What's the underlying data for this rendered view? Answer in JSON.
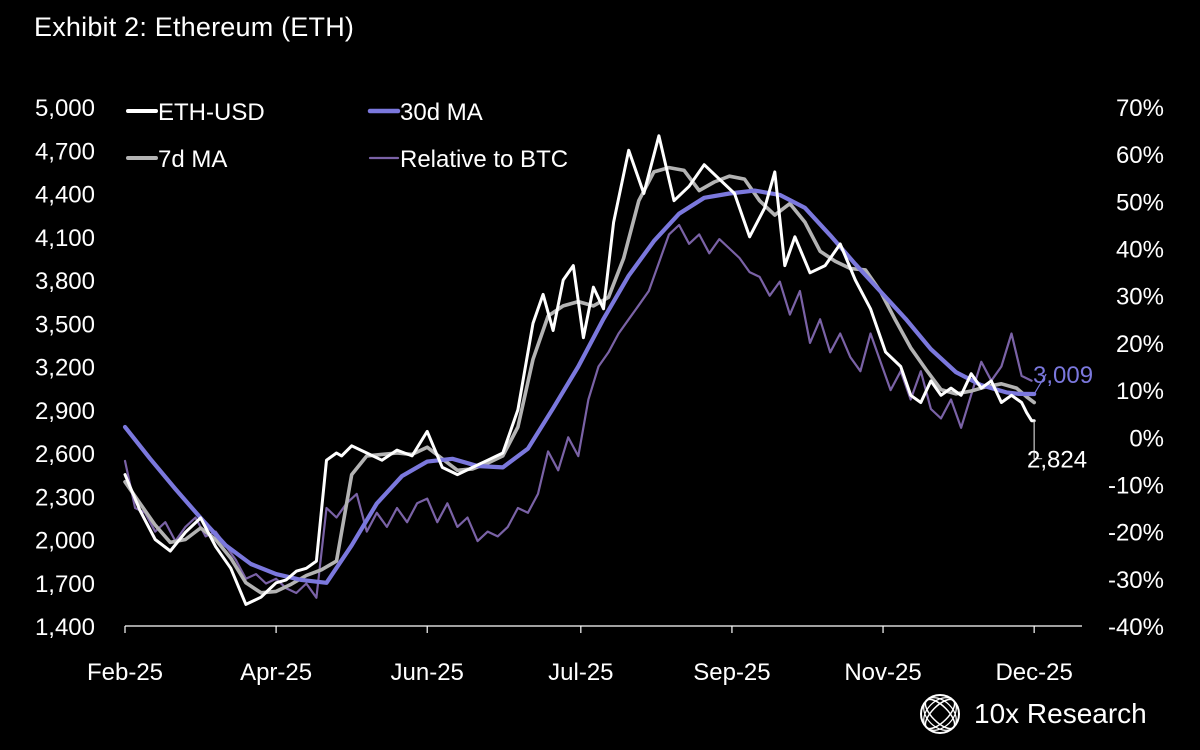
{
  "title": "Exhibit 2: Ethereum (ETH)",
  "brand": {
    "name": "10x Research",
    "icon": "globe-logo-icon"
  },
  "colors": {
    "background": "#000000",
    "eth": "#ffffff",
    "ma7": "#b3b3b3",
    "ma30": "#7b78dd",
    "relative": "#7a62a6",
    "text": "#ffffff"
  },
  "chart_data": {
    "type": "line",
    "x_ticks": [
      "Feb-25",
      "Apr-25",
      "Jun-25",
      "Jul-25",
      "Sep-25",
      "Nov-25",
      "Dec-25"
    ],
    "x_tick_days": [
      0,
      60,
      120,
      181,
      241,
      301,
      361
    ],
    "x_range_days": [
      0,
      380
    ],
    "y_left": {
      "ticks": [
        "5,000",
        "4,700",
        "4,400",
        "4,100",
        "3,800",
        "3,500",
        "3,200",
        "2,900",
        "2,600",
        "2,300",
        "2,000",
        "1,700",
        "1,400"
      ],
      "range": [
        1400,
        5000
      ]
    },
    "y_right": {
      "ticks": [
        "70%",
        "60%",
        "50%",
        "40%",
        "30%",
        "20%",
        "10%",
        "0%",
        "-10%",
        "-20%",
        "-30%",
        "-40%"
      ],
      "range": [
        -40,
        70
      ]
    },
    "legend": [
      "ETH-USD",
      "30d MA",
      "7d MA",
      "Relative to BTC"
    ],
    "series": [
      {
        "name": "ETH-USD",
        "axis": "left",
        "x": [
          0,
          6,
          12,
          18,
          24,
          30,
          36,
          42,
          48,
          54,
          57,
          60,
          64,
          68,
          72,
          76,
          80,
          84,
          86,
          90,
          96,
          102,
          108,
          114,
          120,
          126,
          132,
          138,
          144,
          150,
          156,
          162,
          166,
          170,
          174,
          178,
          182,
          186,
          190,
          194,
          200,
          206,
          212,
          218,
          224,
          230,
          236,
          242,
          248,
          254,
          258,
          262,
          266,
          272,
          278,
          284,
          290,
          296,
          302,
          308,
          312,
          316,
          320,
          324,
          328,
          332,
          336,
          340,
          344,
          348,
          352,
          356,
          358,
          360,
          361
        ],
        "values": [
          2450,
          2200,
          2000,
          1920,
          2050,
          2150,
          1950,
          1800,
          1550,
          1600,
          1650,
          1700,
          1720,
          1780,
          1800,
          1850,
          2550,
          2600,
          2580,
          2650,
          2600,
          2550,
          2620,
          2580,
          2750,
          2500,
          2450,
          2500,
          2550,
          2600,
          2900,
          3500,
          3700,
          3450,
          3800,
          3900,
          3400,
          3750,
          3600,
          4200,
          4700,
          4400,
          4800,
          4350,
          4450,
          4600,
          4500,
          4400,
          4100,
          4300,
          4550,
          3900,
          4100,
          3850,
          3900,
          4050,
          3800,
          3600,
          3300,
          3200,
          3000,
          2950,
          3100,
          3000,
          3050,
          3000,
          3150,
          3050,
          3100,
          2950,
          3000,
          2950,
          2880,
          2824,
          2824
        ]
      },
      {
        "name": "7d MA",
        "axis": "left",
        "x": [
          0,
          6,
          12,
          18,
          24,
          30,
          36,
          42,
          48,
          54,
          60,
          66,
          72,
          78,
          84,
          90,
          96,
          102,
          108,
          114,
          120,
          126,
          132,
          138,
          144,
          150,
          156,
          162,
          168,
          174,
          180,
          186,
          192,
          198,
          204,
          210,
          216,
          222,
          228,
          234,
          240,
          246,
          252,
          258,
          264,
          270,
          276,
          282,
          288,
          294,
          300,
          306,
          312,
          318,
          324,
          330,
          336,
          342,
          348,
          354,
          358,
          361
        ],
        "values": [
          2400,
          2250,
          2100,
          1980,
          2000,
          2080,
          2000,
          1870,
          1700,
          1630,
          1640,
          1690,
          1750,
          1790,
          1850,
          2450,
          2580,
          2590,
          2600,
          2590,
          2640,
          2560,
          2480,
          2490,
          2530,
          2580,
          2780,
          3250,
          3550,
          3620,
          3650,
          3620,
          3680,
          3950,
          4350,
          4550,
          4580,
          4560,
          4420,
          4480,
          4520,
          4500,
          4350,
          4250,
          4330,
          4200,
          4000,
          3930,
          3880,
          3870,
          3720,
          3520,
          3330,
          3180,
          3040,
          3010,
          3030,
          3060,
          3080,
          3050,
          2990,
          2950
        ]
      },
      {
        "name": "30d MA",
        "axis": "left",
        "x": [
          0,
          10,
          20,
          30,
          40,
          50,
          60,
          70,
          80,
          90,
          100,
          110,
          120,
          130,
          140,
          150,
          160,
          170,
          180,
          190,
          200,
          210,
          220,
          230,
          240,
          250,
          260,
          270,
          280,
          290,
          300,
          310,
          320,
          330,
          340,
          350,
          355,
          361
        ],
        "values": [
          2780,
          2560,
          2350,
          2150,
          1960,
          1830,
          1760,
          1720,
          1700,
          1960,
          2250,
          2440,
          2540,
          2560,
          2510,
          2500,
          2630,
          2910,
          3200,
          3530,
          3830,
          4070,
          4260,
          4370,
          4400,
          4420,
          4390,
          4300,
          4110,
          3910,
          3720,
          3530,
          3320,
          3160,
          3070,
          3020,
          3010,
          3009
        ]
      },
      {
        "name": "Relative to BTC",
        "axis": "right",
        "x": [
          0,
          4,
          8,
          12,
          16,
          20,
          24,
          28,
          32,
          36,
          40,
          44,
          48,
          52,
          56,
          60,
          64,
          68,
          72,
          76,
          80,
          84,
          88,
          92,
          96,
          100,
          104,
          108,
          112,
          116,
          120,
          124,
          128,
          132,
          136,
          140,
          144,
          148,
          152,
          156,
          160,
          164,
          168,
          172,
          176,
          180,
          184,
          188,
          192,
          196,
          200,
          204,
          208,
          212,
          216,
          220,
          224,
          228,
          232,
          236,
          240,
          244,
          248,
          252,
          256,
          260,
          264,
          268,
          272,
          276,
          280,
          284,
          288,
          292,
          296,
          300,
          304,
          308,
          312,
          316,
          320,
          324,
          328,
          332,
          336,
          340,
          344,
          348,
          352,
          356,
          360
        ],
        "values": [
          -5,
          -15,
          -16,
          -20,
          -18,
          -22,
          -19,
          -17,
          -21,
          -20,
          -23,
          -26,
          -30,
          -29,
          -31,
          -30,
          -32,
          -33,
          -31,
          -34,
          -15,
          -17,
          -14,
          -12,
          -20,
          -16,
          -19,
          -15,
          -18,
          -14,
          -13,
          -18,
          -14,
          -19,
          -17,
          -22,
          -20,
          -21,
          -19,
          -15,
          -16,
          -12,
          -3,
          -7,
          0,
          -4,
          8,
          15,
          18,
          22,
          25,
          28,
          31,
          37,
          43,
          45,
          41,
          43,
          39,
          42,
          40,
          38,
          35,
          34,
          30,
          33,
          26,
          31,
          20,
          25,
          18,
          22,
          17,
          14,
          22,
          16,
          10,
          14,
          8,
          14,
          6,
          4,
          8,
          2,
          9,
          16,
          12,
          15,
          22,
          13,
          12
        ]
      }
    ],
    "annotations": [
      {
        "label": "3,009",
        "series": "30d MA",
        "value": 3009,
        "color": "#7b78dd"
      },
      {
        "label": "2,824",
        "series": "ETH-USD",
        "value": 2824,
        "color": "#ffffff"
      }
    ]
  }
}
